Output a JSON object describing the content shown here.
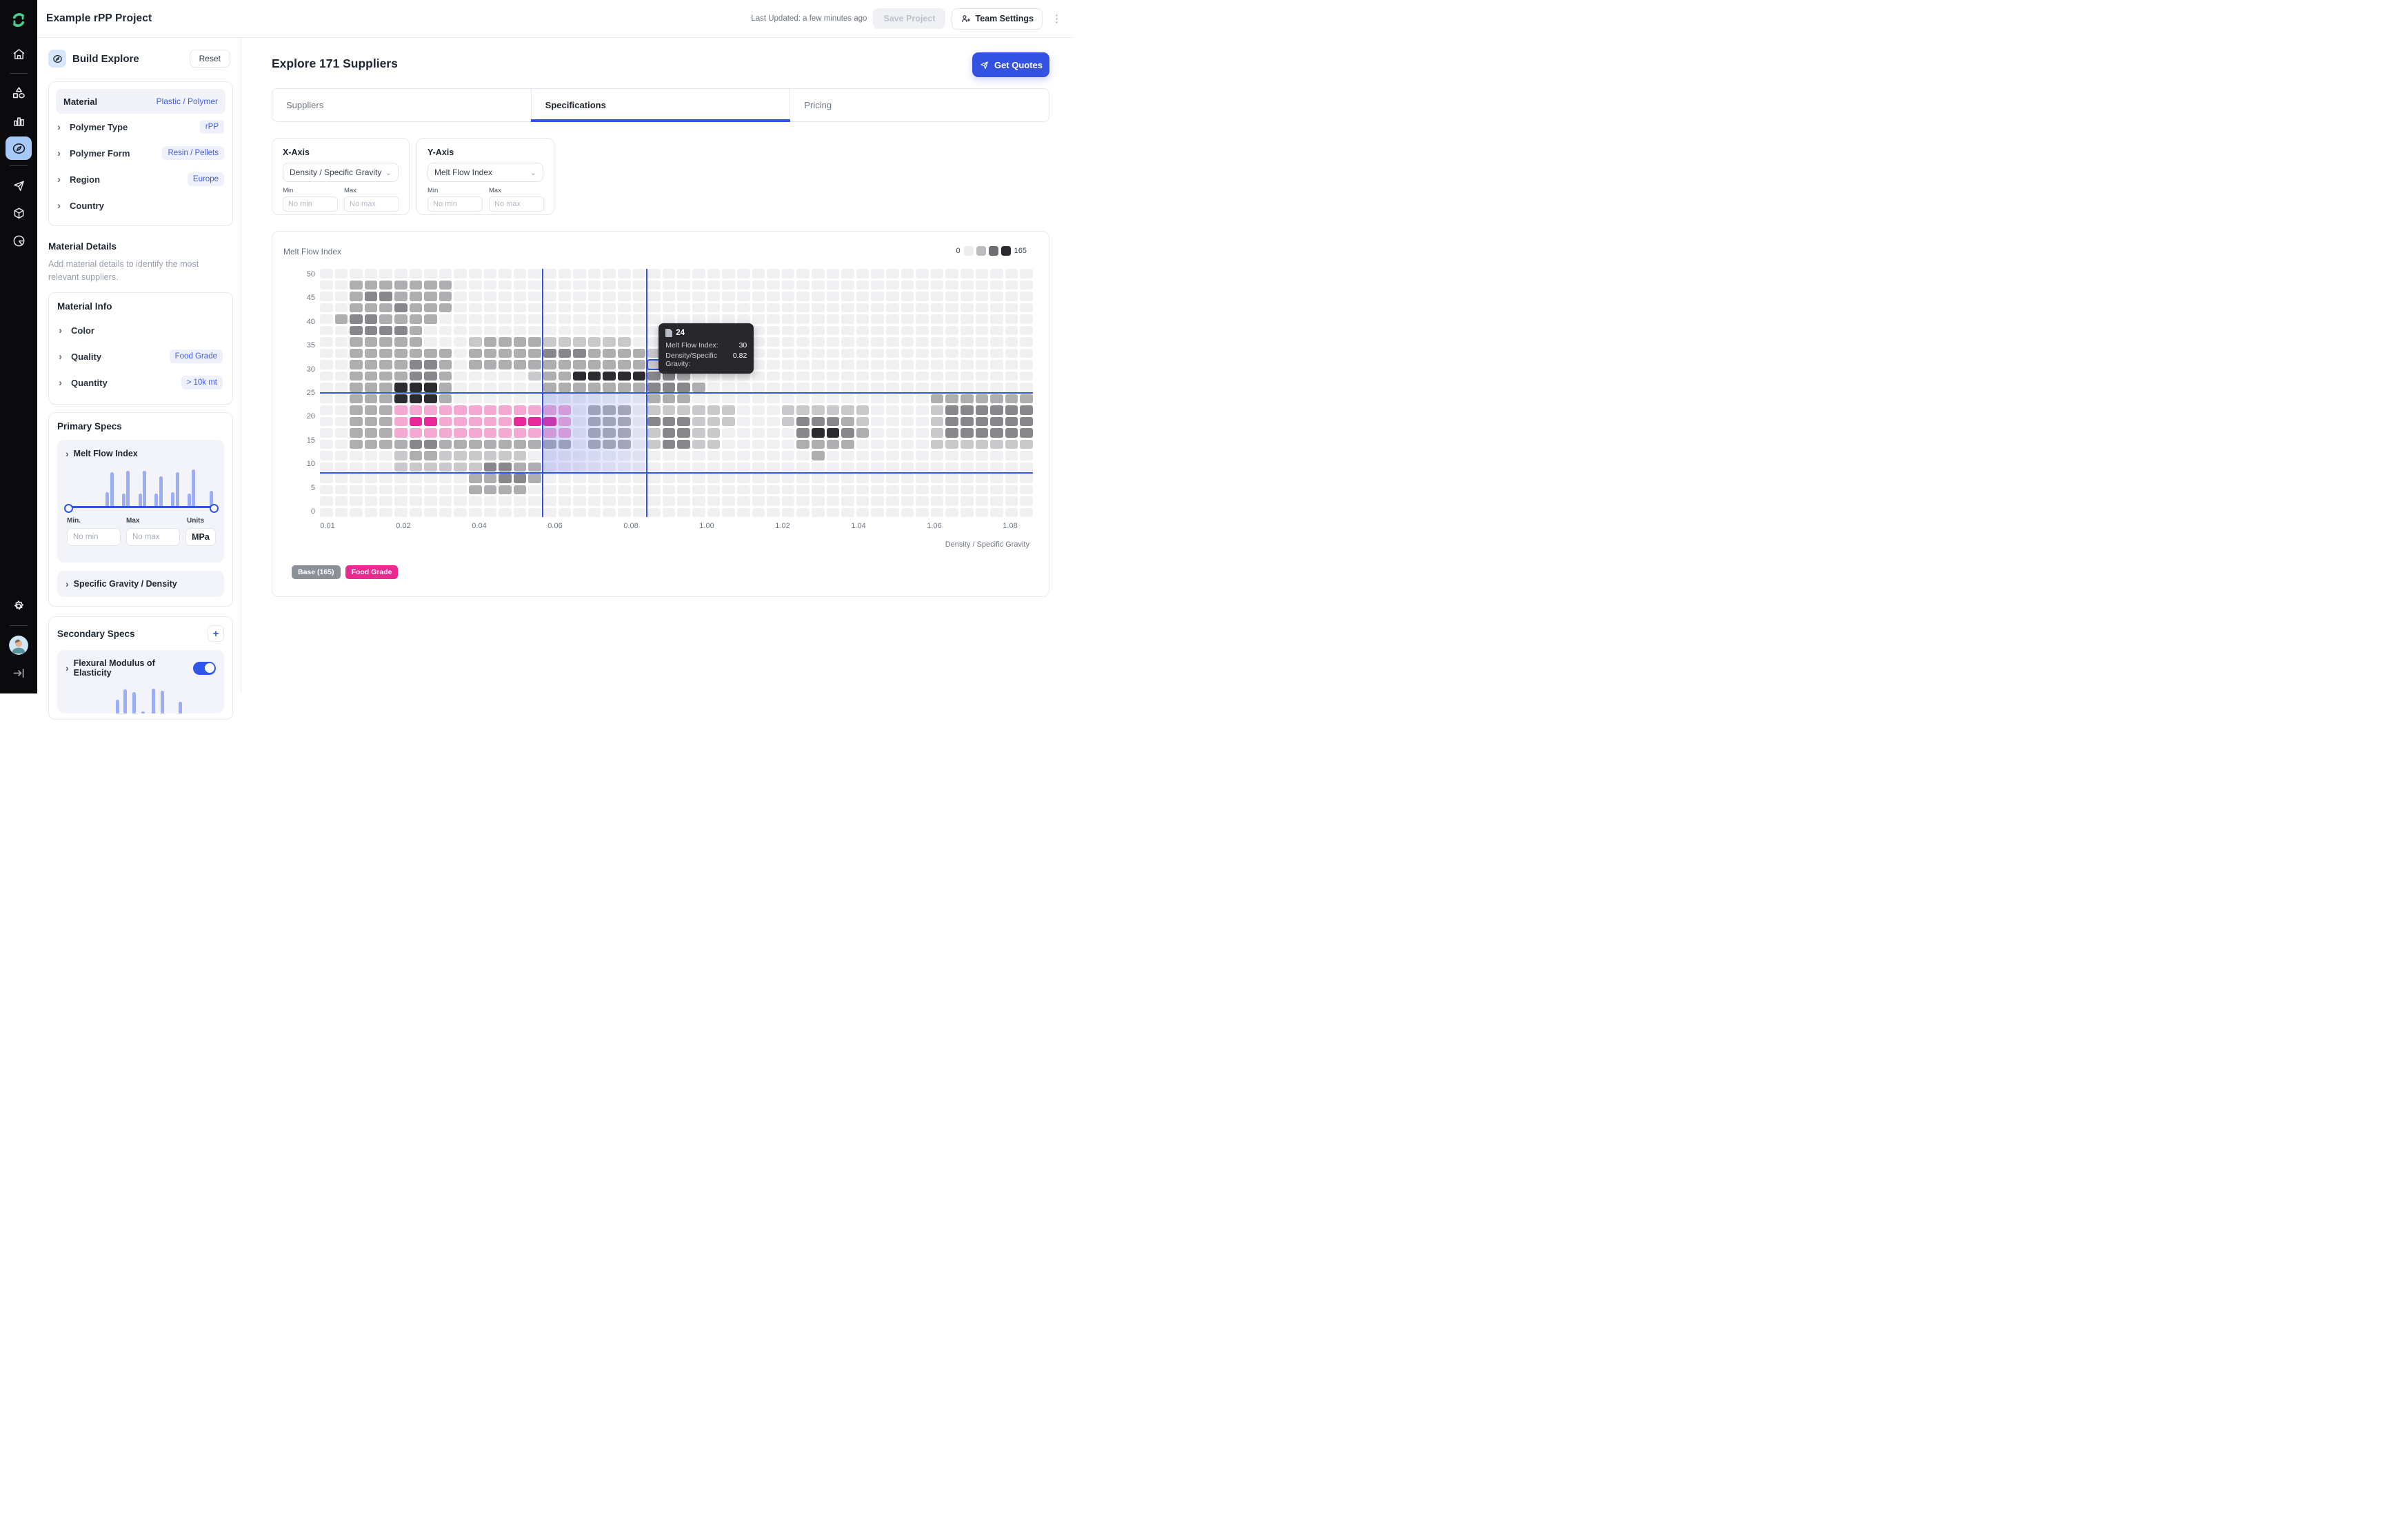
{
  "topbar": {
    "title": "Example rPP Project",
    "last_updated": "Last Updated: a few minutes ago",
    "save_label": "Save Project",
    "team_settings_label": "Team Settings"
  },
  "sidebar": {
    "icons": [
      "logo",
      "home",
      "shapes",
      "bar-chart",
      "compass-active",
      "paper-plane",
      "cube",
      "pie-chart"
    ],
    "bottom_icons": [
      "gear",
      "avatar",
      "sign-out"
    ],
    "active_bg": "#a6c9f8",
    "logo_color": "#46d08f"
  },
  "explore_panel": {
    "title": "Build Explore",
    "reset_label": "Reset",
    "filters": [
      {
        "label": "Material",
        "value": "Plastic / Polymer",
        "type": "header"
      },
      {
        "label": "Polymer Type",
        "value": "rPP"
      },
      {
        "label": "Polymer Form",
        "value": "Resin / Pellets"
      },
      {
        "label": "Region",
        "value": "Europe"
      },
      {
        "label": "Country",
        "value": ""
      }
    ],
    "material_details_title": "Material Details",
    "material_details_desc": "Add material details to identify the most relevant suppliers.",
    "material_info": {
      "title": "Material Info",
      "rows": [
        {
          "label": "Color",
          "value": ""
        },
        {
          "label": "Quality",
          "value": "Food Grade"
        },
        {
          "label": "Quantity",
          "value": "> 10k mt"
        }
      ]
    },
    "primary_specs": {
      "title": "Primary Specs",
      "mfi_label": "Melt Flow Index",
      "min_label": "Min.",
      "max_label": "Max",
      "units_label": "Units",
      "min_placeholder": "No min",
      "max_placeholder": "No max",
      "units_value": "MPa",
      "histogram": [
        [
          26,
          35
        ],
        [
          29,
          82
        ],
        [
          37,
          33
        ],
        [
          40,
          85
        ],
        [
          48,
          33
        ],
        [
          51,
          86
        ],
        [
          59,
          33
        ],
        [
          62,
          72
        ],
        [
          70,
          35
        ],
        [
          73,
          83
        ],
        [
          81,
          33
        ],
        [
          84,
          88
        ],
        [
          96,
          38
        ]
      ],
      "sg_label": "Specific Gravity / Density"
    },
    "secondary_specs": {
      "title": "Secondary Specs",
      "add_label": "+",
      "flex_label": "Flexural Modulus of Elasticity",
      "toggle_on": true,
      "histogram": [
        [
          33,
          70
        ],
        [
          38,
          95
        ],
        [
          44,
          88
        ],
        [
          50,
          42
        ],
        [
          57,
          97
        ],
        [
          63,
          92
        ],
        [
          69,
          35
        ],
        [
          75,
          65
        ]
      ]
    }
  },
  "main": {
    "heading": "Explore 171 Suppliers",
    "get_quotes_label": "Get Quotes",
    "tabs": [
      {
        "label": "Suppliers",
        "active": false
      },
      {
        "label": "Specifications",
        "active": true
      },
      {
        "label": "Pricing",
        "active": false
      }
    ],
    "x_axis_card": {
      "title": "X-Axis",
      "select_value": "Density / Specific Gravity",
      "min_label": "Min",
      "max_label": "Max",
      "min_placeholder": "No min",
      "max_placeholder": "No max"
    },
    "y_axis_card": {
      "title": "Y-Axis",
      "select_value": "Melt Flow Index",
      "min_label": "Min",
      "max_label": "Max",
      "min_placeholder": "No min",
      "max_placeholder": "No max"
    }
  },
  "chart_data": {
    "type": "heatmap",
    "y_axis_title": "Melt Flow Index",
    "x_axis_title": "Density / Specific Gravity",
    "x_tick_labels": [
      "0.01",
      "0.02",
      "0.04",
      "0.06",
      "0.08",
      "1.00",
      "1.02",
      "1.04",
      "1.06",
      "1.08"
    ],
    "y_tick_labels": [
      "50",
      "45",
      "40",
      "35",
      "30",
      "25",
      "20",
      "15",
      "10",
      "5",
      "0"
    ],
    "color_scale": {
      "min": 0,
      "max": 165,
      "swatches": [
        "#ededef",
        "#bcbcbf",
        "#6f6f73",
        "#2b2b2f"
      ]
    },
    "cell_colors": {
      ".": "#f0f0f2",
      "1": "#c9c9cc",
      "2": "#aeaeb1",
      "3": "#88888c",
      "4": "#2c2c30",
      "p": "#f4a9d3",
      "P": "#e9299b"
    },
    "selection": {
      "col_lines": [
        15,
        22
      ],
      "row_lines": [
        11,
        18
      ],
      "line_color": "#2f55e8",
      "tint_color": "90,110,235"
    },
    "hover_cell": {
      "row": 8,
      "col": 22
    },
    "tooltip": {
      "count": "24",
      "rows": [
        {
          "label": "Melt Flow Index:",
          "value": "30"
        },
        {
          "label": "Density/Specific Gravity:",
          "value": "0.82"
        }
      ]
    },
    "series_chips": [
      {
        "label": "Base (165)",
        "color": "#8b9099"
      },
      {
        "label": "Food Grade",
        "color": "#ea2a8e"
      }
    ],
    "grid_rows": [
      "................................................",
      "..2222222.......................................",
      "..2332222.......................................",
      "..2223222.......................................",
      ".2332222........................................",
      "..33332.........................................",
      "..22222...12222111111...........................",
      "..2222222.2222233322221.........................",
      "..2222332.222222222222132.......................",
      "..2222332.....12244444332.......................",
      "..2224442......22222223332......................",
      "..2224442.............222................2222222",
      "..222pppppppppppp.222.111111...111111....1333333",
      "..222pPPpppppPPPp.222.333111...133321....1333333",
      "..222pppppppppppp.222.13311.....34432....1333333",
      "..222233222222222.222.13311.....2222.....1111111",
      ".....122111111...................2..............",
      ".....1111113322.................................",
      "..........22332.................................",
      "..........2222..................................",
      "................................................",
      "................................................"
    ]
  }
}
